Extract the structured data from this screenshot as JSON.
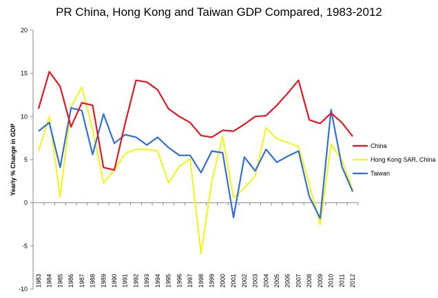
{
  "chart_data": {
    "type": "line",
    "title": "PR China, Hong Kong and Taiwan GDP Compared, 1983-2012",
    "xlabel": "",
    "ylabel": "Yearly % Change in GDP",
    "ylim": [
      -10,
      20
    ],
    "yticks": [
      -10,
      -5,
      0,
      5,
      10,
      15,
      20
    ],
    "grid": false,
    "legend_position": "right",
    "categories": [
      "1983",
      "1984",
      "1985",
      "1986",
      "1987",
      "1988",
      "1989",
      "1990",
      "1991",
      "1992",
      "1993",
      "1994",
      "1995",
      "1996",
      "1997",
      "1998",
      "1999",
      "2000",
      "2001",
      "2002",
      "2003",
      "2004",
      "2005",
      "2006",
      "2007",
      "2008",
      "2009",
      "2010",
      "2011",
      "2012"
    ],
    "series": [
      {
        "name": "China",
        "color": "#e8141b",
        "values": [
          10.9,
          15.2,
          13.5,
          8.8,
          11.6,
          11.3,
          4.1,
          3.8,
          9.2,
          14.2,
          14.0,
          13.1,
          10.9,
          10.0,
          9.3,
          7.8,
          7.6,
          8.4,
          8.3,
          9.1,
          10.0,
          10.1,
          11.3,
          12.7,
          14.2,
          9.6,
          9.2,
          10.4,
          9.3,
          7.7
        ]
      },
      {
        "name": "Hong Kong SAR, China",
        "color": "#f4f422",
        "values": [
          6.0,
          10.0,
          0.7,
          11.1,
          13.4,
          8.5,
          2.3,
          3.8,
          5.7,
          6.2,
          6.2,
          6.0,
          2.3,
          4.2,
          5.1,
          -5.9,
          2.5,
          7.7,
          0.6,
          1.7,
          3.1,
          8.7,
          7.4,
          7.0,
          6.5,
          2.1,
          -2.5,
          6.8,
          4.9,
          1.5
        ]
      },
      {
        "name": "Taiwan",
        "color": "#2e6fd6",
        "values": [
          8.3,
          9.3,
          4.1,
          11.0,
          10.7,
          5.6,
          10.3,
          6.9,
          7.9,
          7.6,
          6.7,
          7.6,
          6.4,
          5.5,
          5.5,
          3.5,
          6.0,
          5.8,
          -1.7,
          5.3,
          3.7,
          6.2,
          4.7,
          5.4,
          6.0,
          0.7,
          -1.8,
          10.8,
          4.2,
          1.3
        ]
      }
    ]
  }
}
